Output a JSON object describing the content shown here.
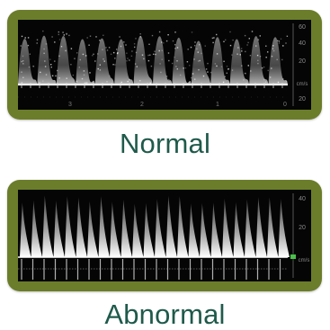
{
  "panels": [
    {
      "caption": "Normal",
      "scale_labels": [
        "60",
        "40",
        "20",
        "cm/s",
        "20"
      ],
      "time_labels": [
        "3",
        "2",
        "1",
        "0"
      ]
    },
    {
      "caption": "Abnormal",
      "scale_labels": [
        "40",
        "20",
        "cm/s"
      ]
    }
  ],
  "colors": {
    "frame": "#6b7d2a",
    "caption": "#1f5a4a",
    "screen": "#050505"
  }
}
